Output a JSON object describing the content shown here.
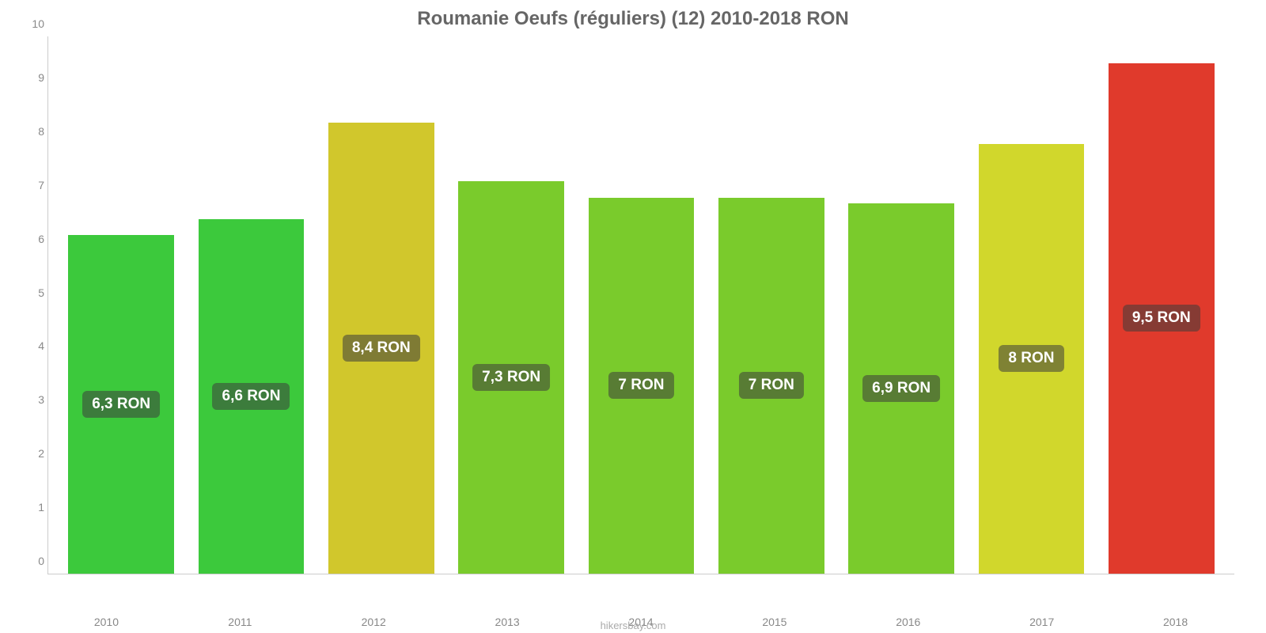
{
  "chart": {
    "type": "bar",
    "title": "Roumanie Oeufs (réguliers) (12) 2010-2018 RON",
    "title_fontsize": 24,
    "title_color": "#666666",
    "background_color": "#ffffff",
    "axis_color": "#cccccc",
    "tick_color": "#888888",
    "tick_fontsize": 14,
    "label_fontsize": 19,
    "label_bg": "rgba(60,60,60,0.55)",
    "label_color": "#ffffff",
    "ylim": [
      0,
      10
    ],
    "yticks": [
      0,
      1,
      2,
      3,
      4,
      5,
      6,
      7,
      8,
      9,
      10
    ],
    "categories": [
      "2010",
      "2011",
      "2012",
      "2013",
      "2014",
      "2015",
      "2016",
      "2017",
      "2018"
    ],
    "values": [
      6.3,
      6.6,
      8.4,
      7.3,
      7.0,
      7.0,
      6.9,
      8.0,
      9.5
    ],
    "value_labels": [
      "6,3 RON",
      "6,6 RON",
      "8,4 RON",
      "7,3 RON",
      "7 RON",
      "7 RON",
      "6,9 RON",
      "8 RON",
      "9,5 RON"
    ],
    "bar_colors": [
      "#3cc93c",
      "#3cc93c",
      "#d1c72c",
      "#7acb2c",
      "#7acb2c",
      "#7acb2c",
      "#7acb2c",
      "#d1d72c",
      "#e03a2c"
    ],
    "bar_width_pct": 90,
    "source": "hikersbay.com"
  }
}
